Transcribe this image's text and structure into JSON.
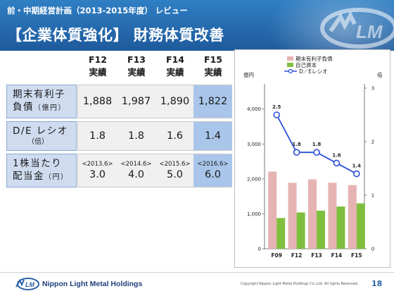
{
  "header": {
    "subtitle": "前・中期経営計画（2013-2015年度） レビュー",
    "title": "【企業体質強化】 財務体質改善",
    "logo_icon": "nlm-logo-icon"
  },
  "table": {
    "columns": [
      {
        "period": "F12",
        "label": "実績"
      },
      {
        "period": "F13",
        "label": "実績"
      },
      {
        "period": "F14",
        "label": "実績"
      },
      {
        "period": "F15",
        "label": "実績"
      }
    ],
    "rows": [
      {
        "label": "期末有利子",
        "label2": "負債",
        "unit": "（億円）",
        "values": [
          "1,888",
          "1,987",
          "1,890",
          "1,822"
        ]
      },
      {
        "label": "D/E レシオ",
        "unit": "（倍）",
        "values": [
          "1.8",
          "1.8",
          "1.6",
          "1.4"
        ]
      },
      {
        "label": "1株当たり",
        "label2": "配当金",
        "unit": "（円）",
        "dates": [
          "<2013.6>",
          "<2014.6>",
          "<2015.6>",
          "<2016.6>"
        ],
        "values": [
          "3.0",
          "4.0",
          "5.0",
          "6.0"
        ]
      }
    ],
    "highlight_color": "#a9c6ea",
    "label_bg": "#cfdcf0"
  },
  "chart_data": {
    "type": "bar",
    "categories": [
      "F09",
      "F12",
      "F13",
      "F14",
      "F15"
    ],
    "series": [
      {
        "name": "期末有利子負債",
        "type": "bar",
        "axis": "left",
        "color": "#e6b3b3",
        "values": [
          2210,
          1888,
          1987,
          1890,
          1822
        ]
      },
      {
        "name": "自己資本",
        "type": "bar",
        "axis": "left",
        "color": "#7fbf3f",
        "values": [
          880,
          1040,
          1090,
          1210,
          1300
        ]
      },
      {
        "name": "D／Eレシオ",
        "type": "line",
        "axis": "right",
        "color": "#2b4fd8",
        "values": [
          2.5,
          1.8,
          1.8,
          1.6,
          1.4
        ]
      }
    ],
    "line_labels": [
      "2.5",
      "1.8",
      "1.8",
      "1.6",
      "1.4"
    ],
    "ylabel": "億円",
    "y2label": "倍",
    "ylim": [
      0,
      4600
    ],
    "yticks": [
      "0",
      "1,000",
      "2,000",
      "3,000",
      "4,000"
    ],
    "yticks_values": [
      0,
      1000,
      2000,
      3000,
      4000
    ],
    "y2lim": [
      0,
      3.0
    ],
    "y2ticks": [
      "0",
      "1",
      "2",
      "3"
    ],
    "y2ticks_values": [
      0,
      1,
      2,
      3
    ],
    "legend": "top",
    "grid": false
  },
  "footer": {
    "company": "Nippon Light Metal Holdings",
    "copyright": "Copyright Nippon Light Metal Holdings Co.,Ltd. All rights Reserved.",
    "page": "18"
  }
}
